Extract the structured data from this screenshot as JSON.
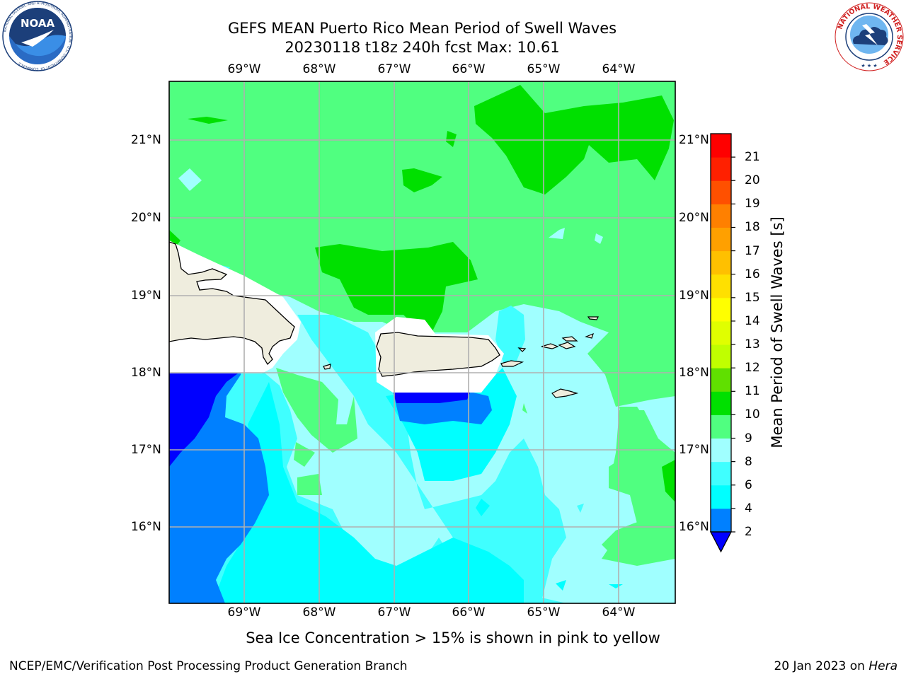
{
  "header": {
    "title_line1": "GEFS MEAN Puerto Rico Mean Period of Swell Waves",
    "title_line2": "20230118 t18z 240h fcst   Max: 10.61"
  },
  "logos": {
    "noaa_text": "NOAA",
    "noaa_ring_text": "NATIONAL OCEANIC AND ATMOSPHERIC ADMINISTRATION · U.S. DEPARTMENT OF COMMERCE",
    "nws_ring_text": "NATIONAL WEATHER SERVICE"
  },
  "map": {
    "lon_labels": [
      "69°W",
      "68°W",
      "67°W",
      "66°W",
      "65°W",
      "64°W"
    ],
    "lat_labels": [
      "21°N",
      "20°N",
      "19°N",
      "18°N",
      "17°N",
      "16°N"
    ],
    "land_color": "#efedde",
    "coast_color": "#000000",
    "grid_color": "#b0b0b0"
  },
  "colorbar": {
    "title": "Mean Period of Swell Waves [s]",
    "tick_labels": [
      "2",
      "4",
      "6",
      "8",
      "9",
      "10",
      "11",
      "12",
      "13",
      "14",
      "15",
      "16",
      "17",
      "18",
      "19",
      "20",
      "21"
    ],
    "colors": [
      "#0000ff",
      "#0080ff",
      "#00ffff",
      "#40ffff",
      "#a0ffff",
      "#50ff80",
      "#00e000",
      "#60e000",
      "#c0ff00",
      "#e0ff00",
      "#ffff00",
      "#ffe000",
      "#ffc000",
      "#ffa000",
      "#ff8000",
      "#ff5000",
      "#ff2000",
      "#ff0000"
    ],
    "under_color": "#0000ff"
  },
  "footer": {
    "note": "Sea Ice Concentration > 15% is shown in pink to yellow",
    "credit": "NCEP/EMC/Verification Post Processing Product Generation Branch",
    "date": "20 Jan 2023 on",
    "host": "Hera"
  }
}
